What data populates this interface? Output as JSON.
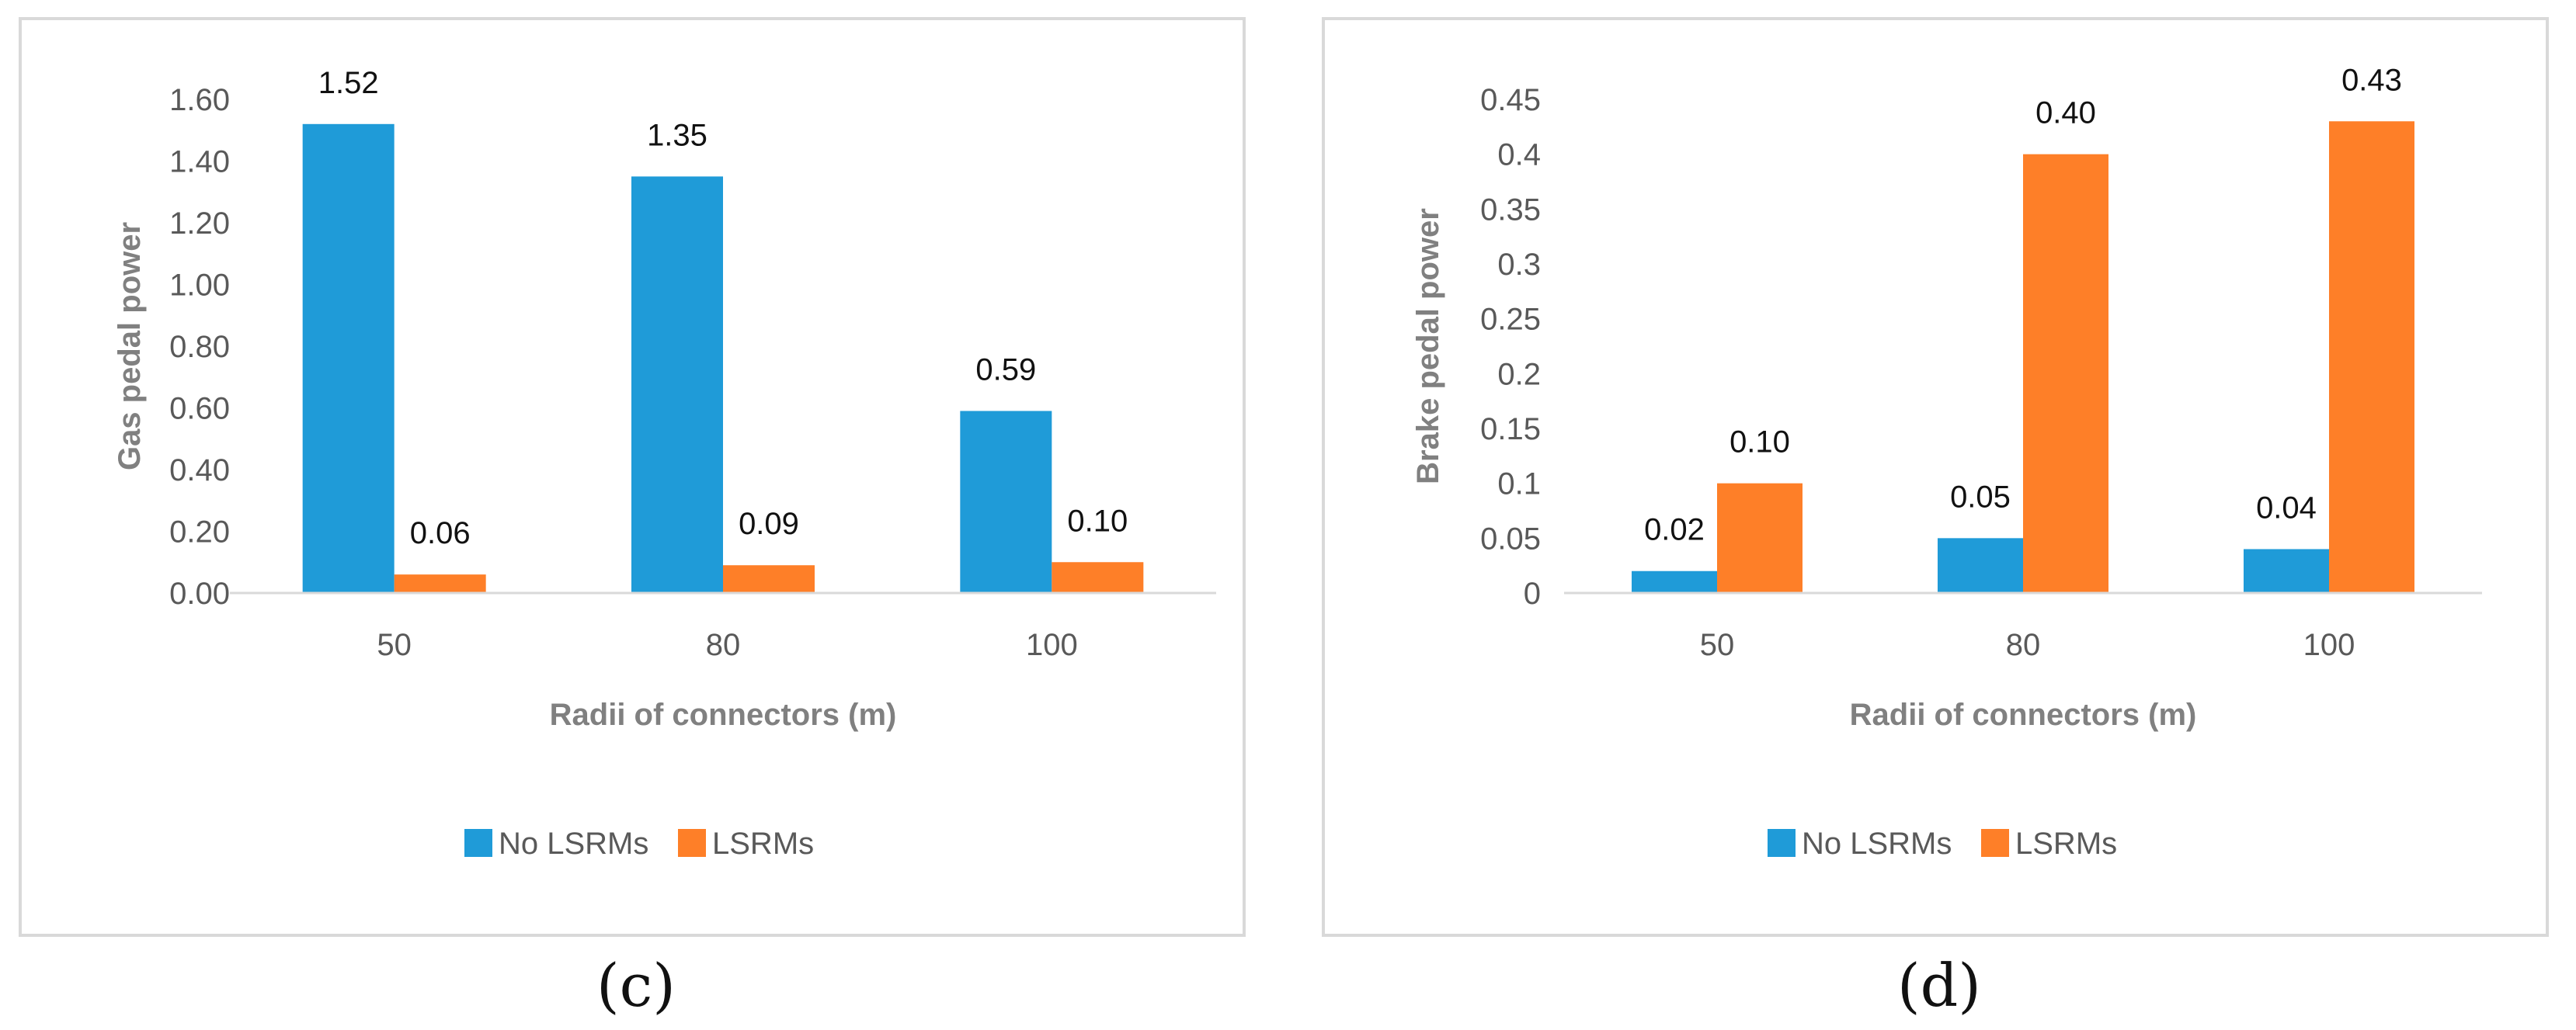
{
  "colors": {
    "no_lsrms": "#1f9bd8",
    "lsrms": "#fe7f28",
    "axis": "#d9d9d9"
  },
  "chart_data": [
    {
      "id": "c",
      "type": "bar",
      "caption": "(c)",
      "categories": [
        "50",
        "80",
        "100"
      ],
      "series": [
        {
          "name": "No LSRMs",
          "values": [
            1.52,
            1.35,
            0.59
          ],
          "labels": [
            "1.52",
            "1.35",
            "0.59"
          ]
        },
        {
          "name": "LSRMs",
          "values": [
            0.06,
            0.09,
            0.1
          ],
          "labels": [
            "0.06",
            "0.09",
            "0.10"
          ]
        }
      ],
      "ylim": [
        0,
        1.6
      ],
      "yticks": [
        "0.00",
        "0.20",
        "0.40",
        "0.60",
        "0.80",
        "1.00",
        "1.20",
        "1.40",
        "1.60"
      ],
      "xlabel": "Radii of connectors (m)",
      "ylabel": "Gas pedal power",
      "legend_position": "bottom",
      "grid": false
    },
    {
      "id": "d",
      "type": "bar",
      "caption": "(d)",
      "categories": [
        "50",
        "80",
        "100"
      ],
      "series": [
        {
          "name": "No LSRMs",
          "values": [
            0.02,
            0.05,
            0.04
          ],
          "labels": [
            "0.02",
            "0.05",
            "0.04"
          ]
        },
        {
          "name": "LSRMs",
          "values": [
            0.1,
            0.4,
            0.43
          ],
          "labels": [
            "0.10",
            "0.40",
            "0.43"
          ]
        }
      ],
      "ylim": [
        0,
        0.45
      ],
      "yticks": [
        "0",
        "0.05",
        "0.1",
        "0.15",
        "0.2",
        "0.25",
        "0.3",
        "0.35",
        "0.4",
        "0.45"
      ],
      "xlabel": "Radii of connectors (m)",
      "ylabel": "Brake pedal power",
      "legend_position": "bottom",
      "grid": false
    }
  ]
}
